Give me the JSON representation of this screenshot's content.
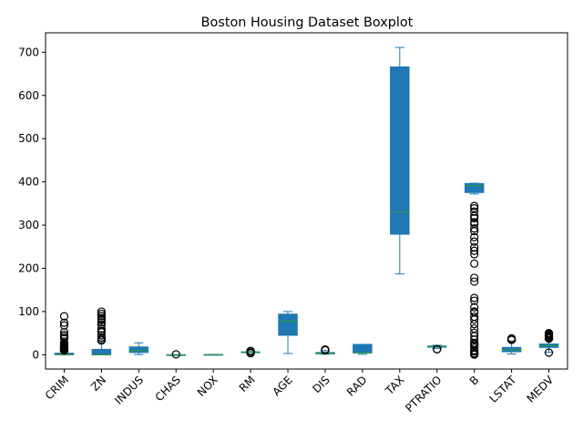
{
  "chart_data": {
    "type": "box",
    "title": "Boston Housing Dataset Boxplot",
    "xlabel": "",
    "ylabel": "",
    "ylim": [
      -33,
      745
    ],
    "yticks": [
      0,
      100,
      200,
      300,
      400,
      500,
      600,
      700
    ],
    "grid": false,
    "legend": "none",
    "colors": {
      "box_fill": "#1f77b4",
      "box_edge": "#1f77b4",
      "median": "#2ca02c",
      "whisker": "#1f77b4",
      "flier": "#000000"
    },
    "categories": [
      "CRIM",
      "ZN",
      "INDUS",
      "CHAS",
      "NOX",
      "RM",
      "AGE",
      "DIS",
      "RAD",
      "TAX",
      "PTRATIO",
      "B",
      "LSTAT",
      "MEDV"
    ],
    "boxes": [
      {
        "label": "CRIM",
        "whislo": 0.0,
        "q1": 0.1,
        "med": 0.3,
        "q3": 3.7,
        "whishi": 9.0,
        "fliers": [
          10,
          11,
          12,
          13,
          14,
          15,
          16,
          18,
          20,
          22,
          24,
          25,
          28,
          38,
          42,
          46,
          52,
          68,
          74,
          89
        ]
      },
      {
        "label": "ZN",
        "whislo": 0.0,
        "q1": 0.0,
        "med": 0.0,
        "q3": 12.5,
        "whishi": 31.0,
        "fliers": [
          33,
          35,
          40,
          45,
          52,
          55,
          60,
          70,
          75,
          80,
          82,
          85,
          90,
          95,
          100
        ]
      },
      {
        "label": "INDUS",
        "whislo": 0.5,
        "q1": 5.2,
        "med": 9.7,
        "q3": 18.1,
        "whishi": 27.7,
        "fliers": []
      },
      {
        "label": "CHAS",
        "whislo": 0.0,
        "q1": 0.0,
        "med": 0.0,
        "q3": 0.0,
        "whishi": 0.0,
        "fliers": [
          1
        ]
      },
      {
        "label": "NOX",
        "whislo": 0.4,
        "q1": 0.45,
        "med": 0.54,
        "q3": 0.62,
        "whishi": 0.87,
        "fliers": []
      },
      {
        "label": "RM",
        "whislo": 4.9,
        "q1": 5.9,
        "med": 6.2,
        "q3": 6.6,
        "whishi": 7.7,
        "fliers": [
          3.6,
          4.1,
          4.5,
          7.9,
          8.0,
          8.3,
          8.4,
          8.7
        ]
      },
      {
        "label": "AGE",
        "whislo": 2.9,
        "q1": 45.0,
        "med": 77.5,
        "q3": 94.0,
        "whishi": 100.0,
        "fliers": []
      },
      {
        "label": "DIS",
        "whislo": 1.1,
        "q1": 2.1,
        "med": 3.2,
        "q3": 5.2,
        "whishi": 9.7,
        "fliers": [
          10.6,
          10.7,
          12.1
        ]
      },
      {
        "label": "RAD",
        "whislo": 1.0,
        "q1": 4.0,
        "med": 5.0,
        "q3": 24.0,
        "whishi": 24.0,
        "fliers": []
      },
      {
        "label": "TAX",
        "whislo": 187.0,
        "q1": 279.0,
        "med": 330.0,
        "q3": 666.0,
        "whishi": 711.0,
        "fliers": []
      },
      {
        "label": "PTRATIO",
        "whislo": 14.7,
        "q1": 17.4,
        "med": 19.0,
        "q3": 20.2,
        "whishi": 22.0,
        "fliers": [
          12.6,
          13.0
        ]
      },
      {
        "label": "B",
        "whislo": 372.0,
        "q1": 375.4,
        "med": 391.4,
        "q3": 396.2,
        "whishi": 396.9,
        "fliers": [
          0.3,
          2.6,
          3.5,
          7.7,
          10.5,
          16.5,
          21.6,
          24.7,
          27.5,
          35.0,
          43.1,
          50.9,
          60.7,
          70.8,
          81.3,
          88.0,
          97.9,
          100.2,
          109.9,
          125.0,
          131.4,
          169.3,
          178.0,
          210.9,
          232.6,
          240.5,
          248.3,
          261.9,
          272.2,
          285.8,
          292.3,
          302.8,
          306.4,
          316.0,
          321.0,
          331.3,
          338.9,
          344.1
        ]
      },
      {
        "label": "LSTAT",
        "whislo": 1.7,
        "q1": 6.9,
        "med": 11.4,
        "q3": 17.0,
        "whishi": 31.9,
        "fliers": [
          34.4,
          34.8,
          36.9,
          38.0
        ]
      },
      {
        "label": "MEDV",
        "whislo": 5.6,
        "q1": 17.0,
        "med": 21.2,
        "q3": 25.0,
        "whishi": 36.5,
        "fliers": [
          5.0,
          37.2,
          38.7,
          41.3,
          42.3,
          43.8,
          44.0,
          46.0,
          48.3,
          50.0
        ]
      }
    ]
  }
}
